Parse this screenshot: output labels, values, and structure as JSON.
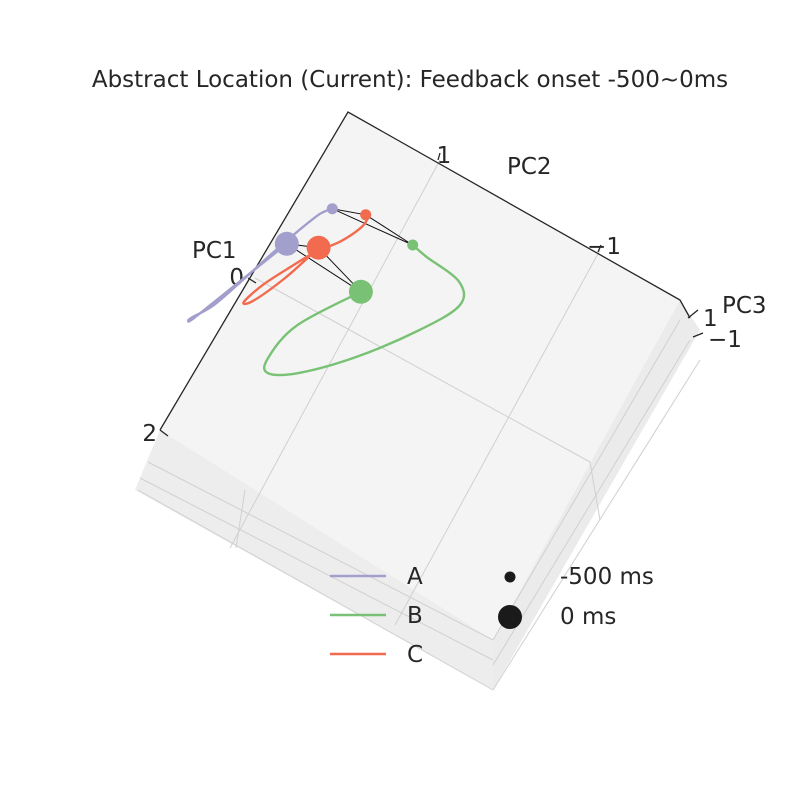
{
  "chart_data": {
    "type": "line3d",
    "title": "Abstract Location (Current): Feedback onset -500~0ms",
    "axes": {
      "x": {
        "label": "PC1",
        "ticks": [
          "0",
          "2"
        ]
      },
      "y": {
        "label": "PC2",
        "ticks": [
          "1",
          "−1"
        ]
      },
      "z": {
        "label": "PC3",
        "ticks": [
          "1",
          "−1"
        ]
      }
    },
    "grid": true,
    "series": [
      {
        "name": "A",
        "color": "#a39fcc",
        "points": [
          [
            0.76,
            0.65,
            0.2
          ],
          [
            0.85,
            0.6,
            0.2
          ],
          [
            1.05,
            0.58,
            0.2
          ],
          [
            1.35,
            0.57,
            0.2
          ],
          [
            1.65,
            0.57,
            0.2
          ],
          [
            1.95,
            0.56,
            0.2
          ],
          [
            2.12,
            0.5,
            0.2
          ],
          [
            2.16,
            0.5,
            0.2
          ],
          [
            2.12,
            0.52,
            0.2
          ],
          [
            1.78,
            0.55,
            0.2
          ],
          [
            1.2,
            0.6,
            0.2
          ]
        ]
      },
      {
        "name": "B",
        "color": "#79c275",
        "points": [
          [
            0.7,
            1.55,
            0.2
          ],
          [
            0.73,
            1.75,
            0.2
          ],
          [
            0.78,
            2.2,
            0.2
          ],
          [
            0.95,
            2.4,
            0.2
          ],
          [
            1.3,
            2.3,
            0.2
          ],
          [
            1.75,
            2.05,
            0.2
          ],
          [
            2.1,
            1.75,
            0.2
          ],
          [
            2.22,
            1.52,
            0.2
          ],
          [
            2.1,
            1.4,
            0.2
          ],
          [
            1.75,
            1.35,
            0.2
          ],
          [
            1.25,
            1.55,
            0.2
          ]
        ]
      },
      {
        "name": "C",
        "color": "#f26b4e",
        "points": [
          [
            0.67,
            0.95,
            0.2
          ],
          [
            0.7,
            1.0,
            0.2
          ],
          [
            0.8,
            1.02,
            0.2
          ],
          [
            0.97,
            0.98,
            0.2
          ],
          [
            1.15,
            0.88,
            0.2
          ],
          [
            1.35,
            0.82,
            0.2
          ],
          [
            1.6,
            0.76,
            0.2
          ],
          [
            1.8,
            0.76,
            0.2
          ],
          [
            1.75,
            0.82,
            0.2
          ],
          [
            1.45,
            0.87,
            0.2
          ],
          [
            1.1,
            0.87,
            0.2
          ]
        ]
      }
    ],
    "time_markers": {
      "start_label": "-500 ms",
      "end_label": "0 ms"
    },
    "connections": "start and end points of all series joined by black lines",
    "legend_placement": "bottom-center"
  }
}
